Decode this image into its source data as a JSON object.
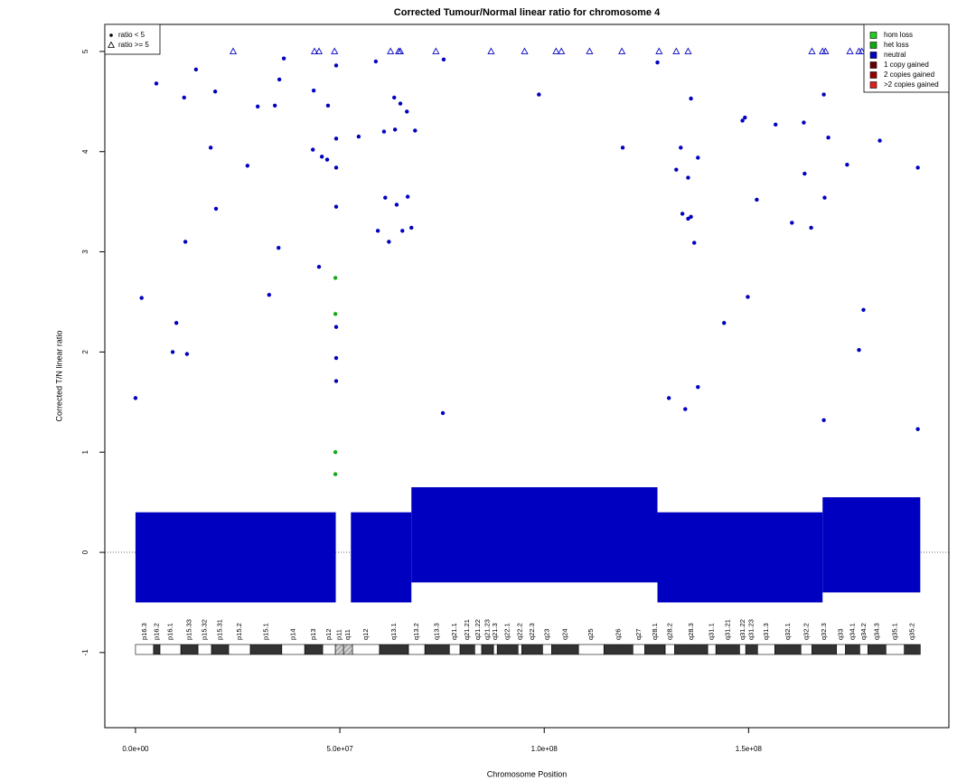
{
  "chart_data": {
    "type": "scatter",
    "title": "Corrected Tumour/Normal linear ratio for chromosome  4",
    "xlabel": "Chromosome Position",
    "ylabel": "Corrected T/N linear ratio",
    "xlim": [
      -7500000,
      199000000
    ],
    "ylim": [
      -1.75,
      5.27
    ],
    "xticks": [
      {
        "value": 0,
        "label": "0.0e+00"
      },
      {
        "value": 50000000,
        "label": "5.0e+07"
      },
      {
        "value": 100000000,
        "label": "1.0e+08"
      },
      {
        "value": 150000000,
        "label": "1.5e+08"
      }
    ],
    "yticks": [
      -1,
      0,
      1,
      2,
      3,
      4,
      5
    ],
    "hline": 0,
    "shape_legend": [
      "ratio < 5",
      "ratio >= 5"
    ],
    "series": [
      {
        "name": "hom loss",
        "color": "#22cc22",
        "x": [],
        "values": []
      },
      {
        "name": "het loss",
        "color": "#11aa11",
        "x": [
          48900000,
          48900000,
          48900000,
          48900000
        ],
        "values": [
          2.74,
          2.38,
          1.0,
          0.78
        ]
      },
      {
        "name": "neutral",
        "color": "#0000c0",
        "x": [
          0,
          1500000,
          5100000,
          9100000,
          10000000,
          11900000,
          12200000,
          12600000,
          14800000,
          18400000,
          19500000,
          19700000,
          27400000,
          29900000,
          32700000,
          34100000,
          35000000,
          35200000,
          36300000,
          43600000,
          43400000,
          44900000,
          45600000,
          47100000,
          46900000,
          49100000,
          49100000,
          49100000,
          49100000,
          49100000,
          49100000,
          49100000,
          54600000,
          58800000,
          59300000,
          60800000,
          61100000,
          62000000,
          63300000,
          63500000,
          63900000,
          64800000,
          65300000,
          66400000,
          66600000,
          67500000,
          68400000,
          75400000,
          75200000,
          98700000,
          119200000,
          127700000,
          130500000,
          132300000,
          133400000,
          133800000,
          134500000,
          135200000,
          135200000,
          135900000,
          135900000,
          136700000,
          137600000,
          137600000,
          144000000,
          148500000,
          149100000,
          149800000,
          152000000,
          156600000,
          160600000,
          163500000,
          163700000,
          165300000,
          168400000,
          168600000,
          169500000,
          168400000,
          174100000,
          177000000,
          178100000,
          182100000,
          191400000,
          191400000
        ],
        "values": [
          1.54,
          2.54,
          4.68,
          2.0,
          2.29,
          4.54,
          3.1,
          1.98,
          4.82,
          4.04,
          4.6,
          3.43,
          3.86,
          4.45,
          2.57,
          4.46,
          3.04,
          4.72,
          4.93,
          4.61,
          4.02,
          2.85,
          3.95,
          4.46,
          3.92,
          4.86,
          4.13,
          3.84,
          3.45,
          2.25,
          1.94,
          1.71,
          4.15,
          4.9,
          3.21,
          4.2,
          3.54,
          3.1,
          4.54,
          4.22,
          3.47,
          4.48,
          3.21,
          4.4,
          3.55,
          3.24,
          4.21,
          4.92,
          1.39,
          4.57,
          4.04,
          4.89,
          1.54,
          3.82,
          4.04,
          3.38,
          1.43,
          3.74,
          3.33,
          4.53,
          3.35,
          3.09,
          3.94,
          1.65,
          2.29,
          4.31,
          4.34,
          2.55,
          3.52,
          4.27,
          3.29,
          4.29,
          3.78,
          3.24,
          4.57,
          3.54,
          4.14,
          1.32,
          3.87,
          2.02,
          2.42,
          4.11,
          3.84,
          1.23
        ],
        "capped_x": [
          0,
          300000,
          5100000,
          23900000,
          43800000,
          44900000,
          48700000,
          62400000,
          64400000,
          64800000,
          73500000,
          87000000,
          95200000,
          102900000,
          104200000,
          111100000,
          119000000,
          128100000,
          132300000,
          135200000,
          165500000,
          168100000,
          168800000,
          174800000,
          177000000,
          177700000,
          179900000,
          181000000,
          191200000
        ],
        "capped_values": [
          5,
          5,
          5,
          5,
          5,
          5,
          5,
          5,
          5,
          5,
          5,
          5,
          5,
          5,
          5,
          5,
          5,
          5,
          5,
          5,
          5,
          5,
          5,
          5,
          5,
          5,
          5,
          5,
          5
        ],
        "ranges": [
          {
            "x": [
              0,
              49000000
            ],
            "values": [
              -0.5,
              0.4
            ]
          },
          {
            "x": [
              52700000,
              67500000
            ],
            "values": [
              -0.5,
              0.4
            ]
          },
          {
            "x": [
              67500000,
              127700000
            ],
            "values": [
              -0.3,
              0.65
            ]
          },
          {
            "x": [
              127700000,
              168100000
            ],
            "values": [
              -0.5,
              0.4
            ]
          },
          {
            "x": [
              168100000,
              192000000
            ],
            "values": [
              -0.4,
              0.55
            ]
          }
        ]
      },
      {
        "name": "1 copy gained",
        "color": "#660000",
        "x": [],
        "values": []
      },
      {
        "name": "2 copies gained",
        "color": "#990000",
        "x": [],
        "values": []
      },
      {
        "name": ">2 copies gained",
        "color": "#dd2020",
        "x": [],
        "values": []
      }
    ],
    "ideogram": {
      "labels": [
        "p16.3",
        "p16.2",
        "p16.1",
        "p15.33",
        "p15.32",
        "p15.31",
        "p15.2",
        "p15.1",
        "p14",
        "p13",
        "p12",
        "p11",
        "q11",
        "q12",
        "q13.1",
        "q13.2",
        "q13.3",
        "q21.1",
        "q21.21",
        "q21.22",
        "q21.23",
        "q21.3",
        "q22.1",
        "q22.2",
        "q22.3",
        "q23",
        "q24",
        "q25",
        "q26",
        "q27",
        "q28.1",
        "q28.2",
        "q28.3",
        "q31.1",
        "q31.21",
        "q31.22",
        "q31.23",
        "q31.3",
        "q32.1",
        "q32.2",
        "q32.3",
        "q33",
        "q34.1",
        "q34.2",
        "q34.3",
        "q35.1",
        "q35.2"
      ],
      "bounds": [
        0,
        4400000,
        6000000,
        11100000,
        15300000,
        18600000,
        22800000,
        28100000,
        35800000,
        41400000,
        45800000,
        48900000,
        50900000,
        53100000,
        59700000,
        66800000,
        70800000,
        76800000,
        79400000,
        83000000,
        84700000,
        87600000,
        88500000,
        93600000,
        94500000,
        99600000,
        101800000,
        108400000,
        114600000,
        121700000,
        124600000,
        129600000,
        131900000,
        140000000,
        142000000,
        147800000,
        149300000,
        152200000,
        156400000,
        162800000,
        165500000,
        171500000,
        173700000,
        177200000,
        179200000,
        183600000,
        188100000,
        192000000
      ],
      "colors": [
        "#ffffff",
        "#333333",
        "#ffffff",
        "#333333",
        "#ffffff",
        "#333333",
        "#ffffff",
        "#333333",
        "#ffffff",
        "#333333",
        "#ffffff",
        "#d0d0d0",
        "#d0d0d0",
        "#ffffff",
        "#333333",
        "#ffffff",
        "#333333",
        "#ffffff",
        "#333333",
        "#ffffff",
        "#333333",
        "#ffffff",
        "#333333",
        "#ffffff",
        "#333333",
        "#ffffff",
        "#333333",
        "#ffffff",
        "#333333",
        "#ffffff",
        "#333333",
        "#ffffff",
        "#333333",
        "#ffffff",
        "#333333",
        "#ffffff",
        "#333333",
        "#ffffff",
        "#333333",
        "#ffffff",
        "#333333",
        "#ffffff",
        "#333333",
        "#ffffff",
        "#333333",
        "#ffffff",
        "#333333"
      ]
    }
  }
}
